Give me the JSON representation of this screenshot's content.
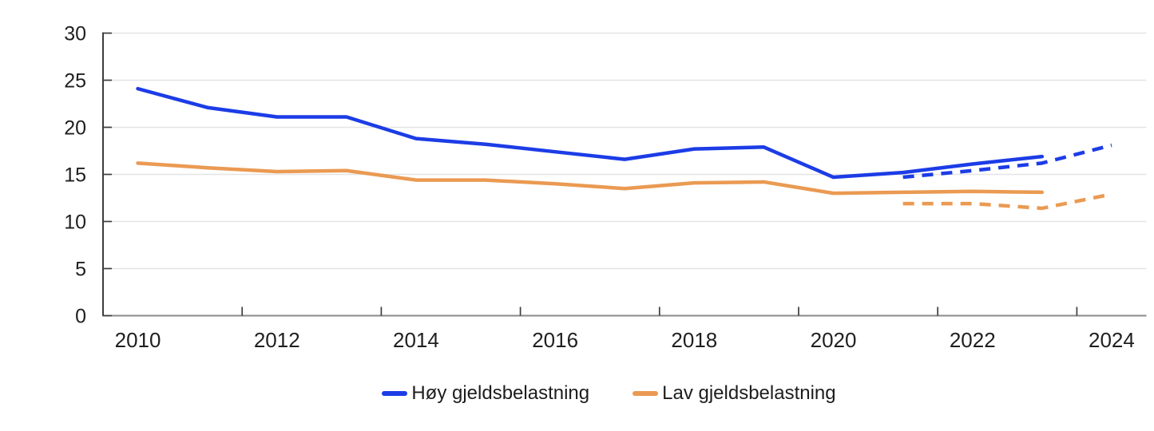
{
  "colors": {
    "hoy_line": "#1c3ce6",
    "lav_line": "#ea9a52",
    "gridline": "#e4e4e4",
    "x_axis_line": "#8a8a8a",
    "y_axis_spine": "#3d3d3d",
    "tick_mark": "#3d3d3d",
    "label_text": "#1f1f1f"
  },
  "legend": {
    "items": [
      {
        "label": "Høy gjeldsbelastning",
        "color": "#1c3ce6"
      },
      {
        "label": "Lav gjeldsbelastning",
        "color": "#ea9a52"
      }
    ]
  },
  "chart_data": {
    "type": "line",
    "title": "",
    "xlabel": "",
    "ylabel": "",
    "xlim": [
      2009.5,
      2024.5
    ],
    "ylim": [
      0,
      30
    ],
    "grid": "horizontal",
    "legend_position": "bottom-center",
    "y_ticks": [
      0,
      5,
      10,
      15,
      20,
      25,
      30
    ],
    "x_tick_labels": [
      "2010",
      "2012",
      "2014",
      "2016",
      "2018",
      "2020",
      "2022",
      "2024"
    ],
    "x_tick_label_positions": [
      2010,
      2012,
      2014,
      2016,
      2018,
      2020,
      2022,
      2024
    ],
    "x_tick_mark_positions": [
      2011.5,
      2013.5,
      2015.5,
      2017.5,
      2019.5,
      2021.5,
      2023.5
    ],
    "series": [
      {
        "id": "hoy-gjeldsbelastning-solid",
        "legend_label": "Høy gjeldsbelastning",
        "color": "#1c3ce6",
        "line_style": "solid",
        "x": [
          2010,
          2011,
          2012,
          2013,
          2014,
          2015,
          2016,
          2017,
          2018,
          2019,
          2020,
          2021,
          2022,
          2023
        ],
        "y": [
          24.1,
          22.1,
          21.1,
          21.1,
          18.8,
          18.2,
          17.4,
          16.6,
          17.7,
          17.9,
          14.7,
          15.2,
          16.1,
          16.9
        ]
      },
      {
        "id": "hoy-gjeldsbelastning-dashed",
        "legend_label": null,
        "color": "#1c3ce6",
        "line_style": "dashed",
        "x": [
          2021,
          2022,
          2023,
          2024
        ],
        "y": [
          14.7,
          15.4,
          16.2,
          18.1
        ]
      },
      {
        "id": "lav-gjeldsbelastning-solid",
        "legend_label": "Lav gjeldsbelastning",
        "color": "#ea9a52",
        "line_style": "solid",
        "x": [
          2010,
          2011,
          2012,
          2013,
          2014,
          2015,
          2016,
          2017,
          2018,
          2019,
          2020,
          2021,
          2022,
          2023
        ],
        "y": [
          16.2,
          15.7,
          15.3,
          15.4,
          14.4,
          14.4,
          14.0,
          13.5,
          14.1,
          14.2,
          13.0,
          13.1,
          13.2,
          13.1
        ]
      },
      {
        "id": "lav-gjeldsbelastning-dashed",
        "legend_label": null,
        "color": "#ea9a52",
        "line_style": "dashed",
        "x": [
          2021,
          2022,
          2023,
          2024
        ],
        "y": [
          11.9,
          11.9,
          11.4,
          12.9
        ]
      }
    ]
  }
}
